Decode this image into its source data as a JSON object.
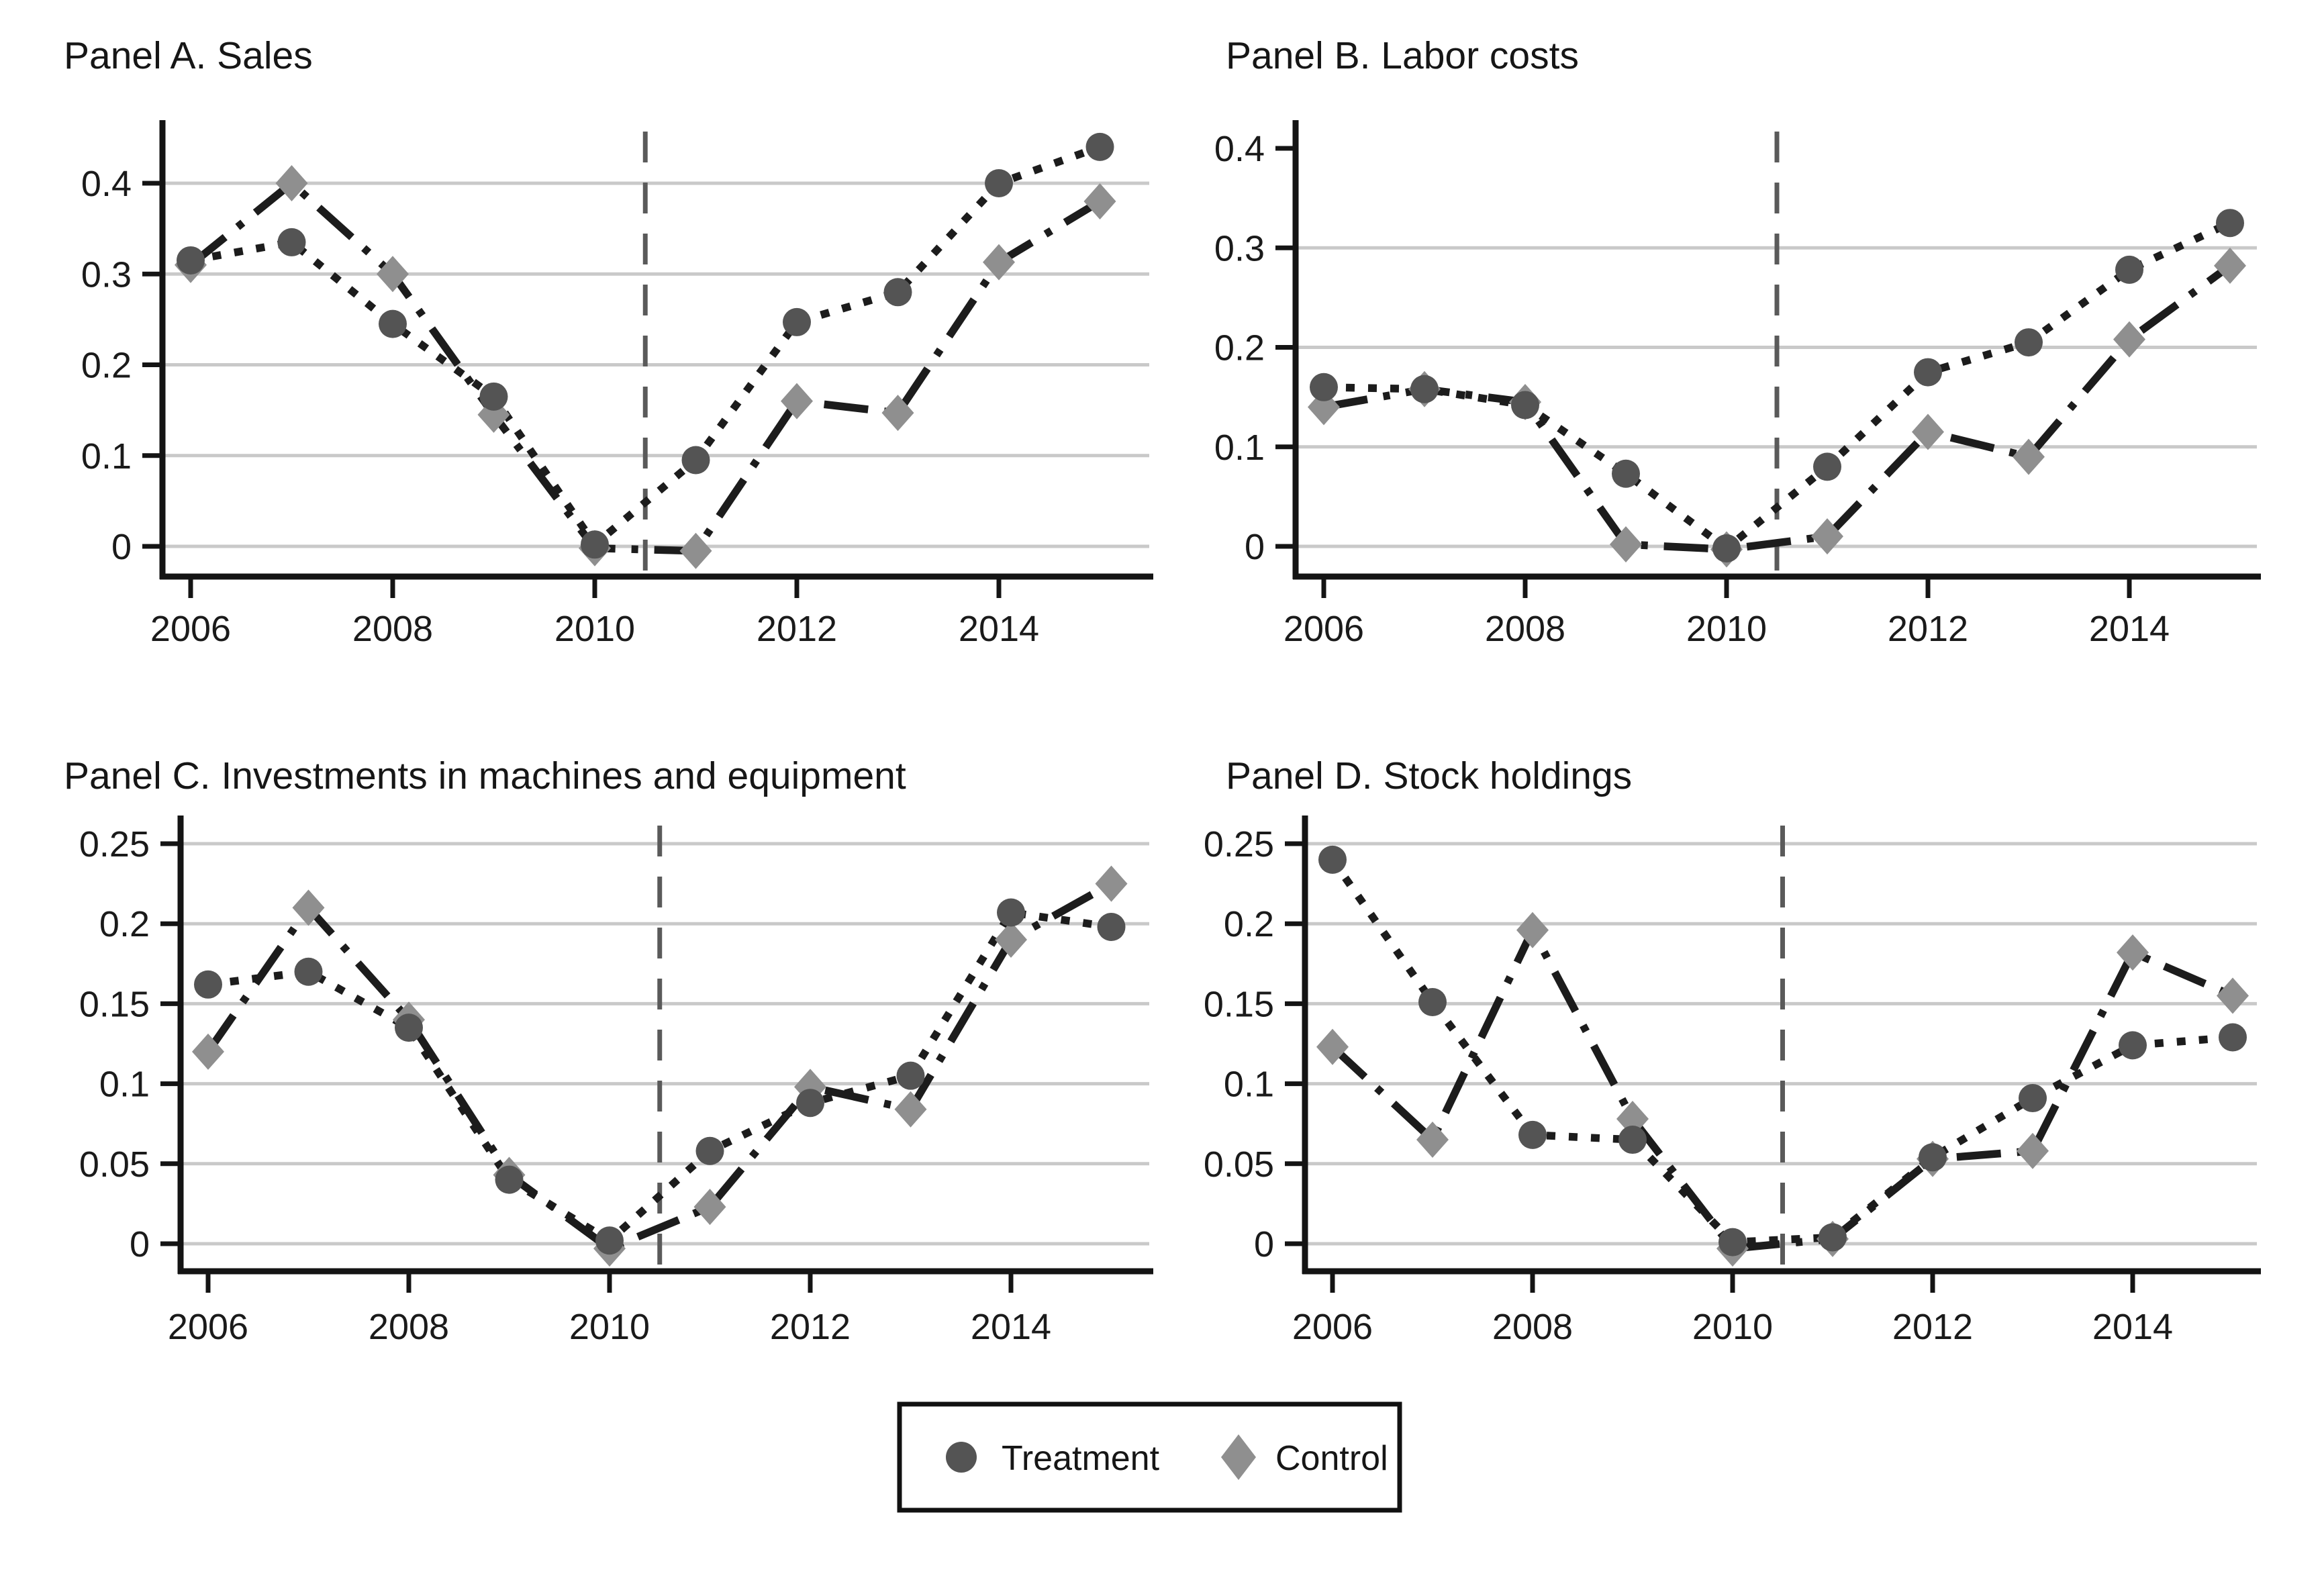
{
  "legend": {
    "treatment_label": "Treatment",
    "control_label": "Control"
  },
  "style": {
    "treatment_marker_color": "#545454",
    "control_marker_color": "#8f8f8f",
    "line_color": "#1c1c1c",
    "grid_color": "#c9c9c9",
    "vline_color": "#5a5a5a",
    "axis_color": "#141414",
    "background": "#ffffff"
  },
  "chart_data": [
    {
      "type": "line",
      "title": "Panel A. Sales",
      "x": [
        2006,
        2007,
        2008,
        2009,
        2010,
        2011,
        2012,
        2013,
        2014,
        2015
      ],
      "xtick_labels": [
        "2006",
        "2008",
        "2010",
        "2012",
        "2014"
      ],
      "xtick_years": [
        2006,
        2008,
        2010,
        2012,
        2014
      ],
      "ytick_labels": [
        "0",
        "0.1",
        "0.2",
        "0.3",
        "0.4"
      ],
      "ytick_values": [
        0,
        0.1,
        0.2,
        0.3,
        0.4
      ],
      "grid_values": [
        0,
        0.1,
        0.2,
        0.3,
        0.4
      ],
      "ylim": [
        -0.03,
        0.47
      ],
      "vline_x": 2010.5,
      "legend_position": "none",
      "grid": true,
      "series": [
        {
          "name": "Treatment",
          "marker": "circle",
          "values": [
            0.315,
            0.335,
            0.245,
            0.165,
            0.002,
            0.095,
            0.247,
            0.28,
            0.4,
            0.44
          ]
        },
        {
          "name": "Control",
          "marker": "diamond",
          "values": [
            0.31,
            0.4,
            0.3,
            0.145,
            -0.002,
            -0.005,
            0.16,
            0.147,
            0.313,
            0.38
          ]
        }
      ]
    },
    {
      "type": "line",
      "title": "Panel B. Labor costs",
      "x": [
        2006,
        2007,
        2008,
        2009,
        2010,
        2011,
        2012,
        2013,
        2014,
        2015
      ],
      "xtick_labels": [
        "2006",
        "2008",
        "2010",
        "2012",
        "2014"
      ],
      "xtick_years": [
        2006,
        2008,
        2010,
        2012,
        2014
      ],
      "ytick_labels": [
        "0",
        "0.1",
        "0.2",
        "0.3",
        "0.4"
      ],
      "ytick_values": [
        0,
        0.1,
        0.2,
        0.3,
        0.4
      ],
      "grid_values": [
        0,
        0.1,
        0.2,
        0.3
      ],
      "ylim": [
        -0.03,
        0.43
      ],
      "vline_x": 2010.5,
      "legend_position": "none",
      "grid": true,
      "series": [
        {
          "name": "Treatment",
          "marker": "circle",
          "values": [
            0.16,
            0.158,
            0.142,
            0.073,
            -0.002,
            0.08,
            0.175,
            0.205,
            0.278,
            0.325
          ]
        },
        {
          "name": "Control",
          "marker": "diamond",
          "values": [
            0.14,
            0.158,
            0.145,
            0.002,
            -0.003,
            0.01,
            0.115,
            0.09,
            0.208,
            0.282
          ]
        }
      ]
    },
    {
      "type": "line",
      "title": "Panel C. Investments in machines and equipment",
      "x": [
        2006,
        2007,
        2008,
        2009,
        2010,
        2011,
        2012,
        2013,
        2014,
        2015
      ],
      "xtick_labels": [
        "2006",
        "2008",
        "2010",
        "2012",
        "2014"
      ],
      "xtick_years": [
        2006,
        2008,
        2010,
        2012,
        2014
      ],
      "ytick_labels": [
        "0",
        "0.05",
        "0.1",
        "0.15",
        "0.2",
        "0.25"
      ],
      "ytick_values": [
        0,
        0.05,
        0.1,
        0.15,
        0.2,
        0.25
      ],
      "grid_values": [
        0,
        0.05,
        0.1,
        0.15,
        0.2,
        0.25
      ],
      "ylim": [
        -0.017,
        0.267
      ],
      "vline_x": 2010.5,
      "legend_position": "none",
      "grid": true,
      "series": [
        {
          "name": "Treatment",
          "marker": "circle",
          "values": [
            0.162,
            0.17,
            0.135,
            0.04,
            0.002,
            0.058,
            0.088,
            0.105,
            0.207,
            0.198
          ]
        },
        {
          "name": "Control",
          "marker": "diamond",
          "values": [
            0.12,
            0.21,
            0.14,
            0.043,
            -0.003,
            0.023,
            0.098,
            0.084,
            0.19,
            0.225
          ]
        }
      ]
    },
    {
      "type": "line",
      "title": "Panel D. Stock holdings",
      "x": [
        2006,
        2007,
        2008,
        2009,
        2010,
        2011,
        2012,
        2013,
        2014,
        2015
      ],
      "xtick_labels": [
        "2006",
        "2008",
        "2010",
        "2012",
        "2014"
      ],
      "xtick_years": [
        2006,
        2008,
        2010,
        2012,
        2014
      ],
      "ytick_labels": [
        "0",
        "0.05",
        "0.1",
        "0.15",
        "0.2",
        "0.25"
      ],
      "ytick_values": [
        0,
        0.05,
        0.1,
        0.15,
        0.2,
        0.25
      ],
      "grid_values": [
        0,
        0.05,
        0.1,
        0.15,
        0.2,
        0.25
      ],
      "ylim": [
        -0.017,
        0.267
      ],
      "vline_x": 2010.5,
      "legend_position": "none",
      "grid": true,
      "series": [
        {
          "name": "Treatment",
          "marker": "circle",
          "values": [
            0.24,
            0.151,
            0.068,
            0.065,
            0.001,
            0.004,
            0.054,
            0.091,
            0.124,
            0.129
          ]
        },
        {
          "name": "Control",
          "marker": "diamond",
          "values": [
            0.123,
            0.065,
            0.196,
            0.078,
            -0.003,
            0.003,
            0.053,
            0.058,
            0.182,
            0.155
          ]
        }
      ]
    }
  ]
}
